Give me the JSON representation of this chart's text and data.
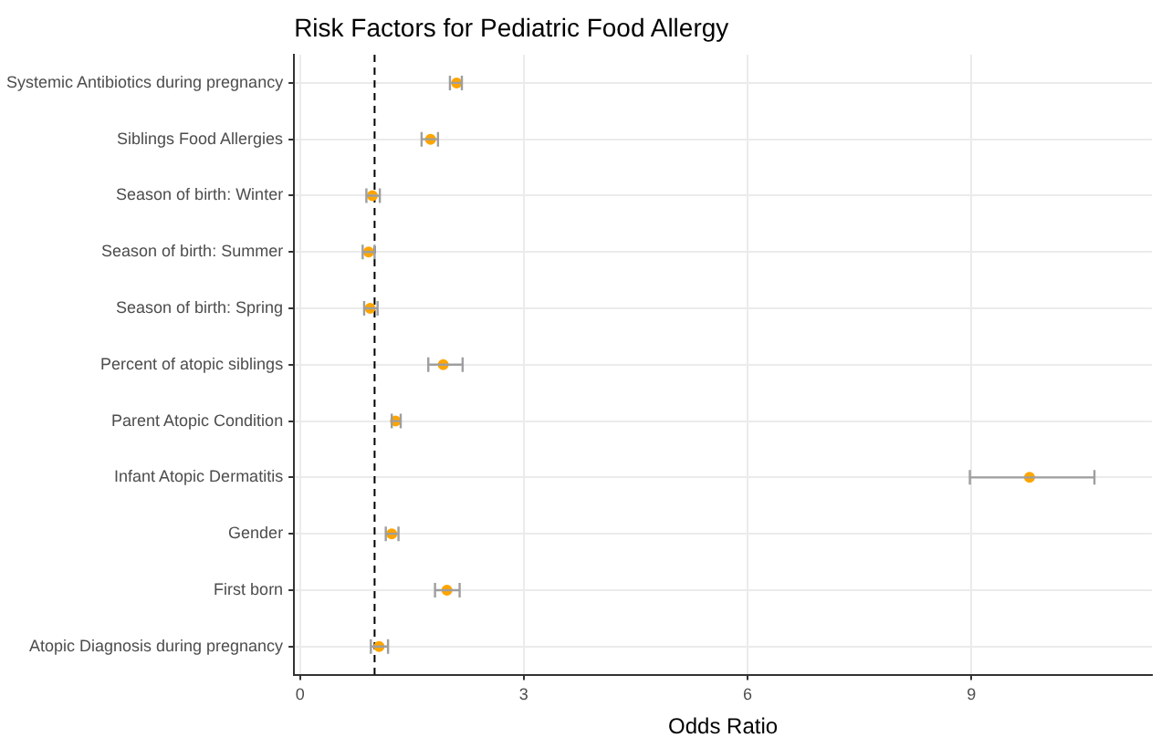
{
  "chart_data": {
    "type": "scatter",
    "title": "Risk Factors for Pediatric Food Allergy",
    "xlabel": "Odds Ratio",
    "orientation": "horizontal",
    "categories": [
      "Systemic Antibiotics during pregnancy",
      "Siblings Food Allergies",
      "Season of birth: Winter",
      "Season of birth: Summer",
      "Season of birth: Spring",
      "Percent of atopic siblings",
      "Parent Atopic Condition",
      "Infant Atopic Dermatitis",
      "Gender",
      "First born",
      "Atopic Diagnosis during pregnancy"
    ],
    "values": [
      2.1,
      1.75,
      0.97,
      0.92,
      0.94,
      1.92,
      1.28,
      9.78,
      1.23,
      1.97,
      1.06
    ],
    "errors": [
      [
        2.01,
        2.17
      ],
      [
        1.63,
        1.85
      ],
      [
        0.89,
        1.07
      ],
      [
        0.84,
        1.0
      ],
      [
        0.86,
        1.04
      ],
      [
        1.72,
        2.18
      ],
      [
        1.23,
        1.35
      ],
      [
        8.98,
        10.65
      ],
      [
        1.15,
        1.32
      ],
      [
        1.81,
        2.14
      ],
      [
        0.95,
        1.18
      ]
    ],
    "color": "#ffa500",
    "marker": "circle",
    "xlim": [
      -0.08,
      11.42
    ],
    "xticks": [
      0,
      3,
      6,
      9
    ],
    "grid": true,
    "legend": false,
    "ref_lines": [
      {
        "axis": "x",
        "value": 1,
        "line_style": "dashed",
        "color": "#000000"
      }
    ]
  }
}
